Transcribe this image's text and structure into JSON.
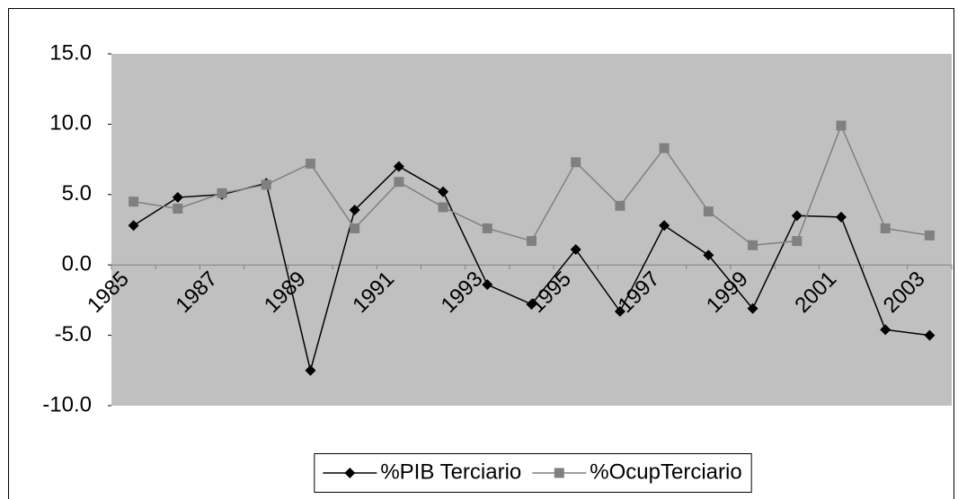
{
  "chart_data": {
    "type": "line",
    "categories": [
      "1985",
      null,
      "1987",
      null,
      "1989",
      null,
      "1991",
      null,
      "1993",
      null,
      "1995",
      null,
      "1997",
      null,
      "1999",
      null,
      "2001",
      null,
      "2003"
    ],
    "series": [
      {
        "name": "%PIB Terciario",
        "color": "#000000",
        "marker": "diamond",
        "values": [
          2.8,
          4.8,
          5.0,
          5.8,
          -7.5,
          3.9,
          7.0,
          5.2,
          -1.4,
          -2.8,
          1.1,
          -3.3,
          2.8,
          0.7,
          -3.1,
          3.5,
          3.4,
          -4.6,
          -5.0
        ]
      },
      {
        "name": "%OcupTerciario",
        "color": "#808080",
        "marker": "square",
        "values": [
          4.5,
          4.0,
          5.1,
          5.7,
          7.2,
          2.6,
          5.9,
          4.1,
          2.6,
          1.7,
          7.3,
          4.2,
          8.3,
          3.8,
          1.4,
          1.7,
          9.9,
          2.6,
          2.1
        ]
      }
    ],
    "ylim": [
      -10,
      15
    ],
    "yticks": [
      {
        "value": -10,
        "label": "-10.0"
      },
      {
        "value": -5,
        "label": "-5.0"
      },
      {
        "value": 0,
        "label": "0.0"
      },
      {
        "value": 5,
        "label": "5.0"
      },
      {
        "value": 10,
        "label": "10.0"
      },
      {
        "value": 15,
        "label": "15.0"
      }
    ],
    "legend": "bottom"
  }
}
